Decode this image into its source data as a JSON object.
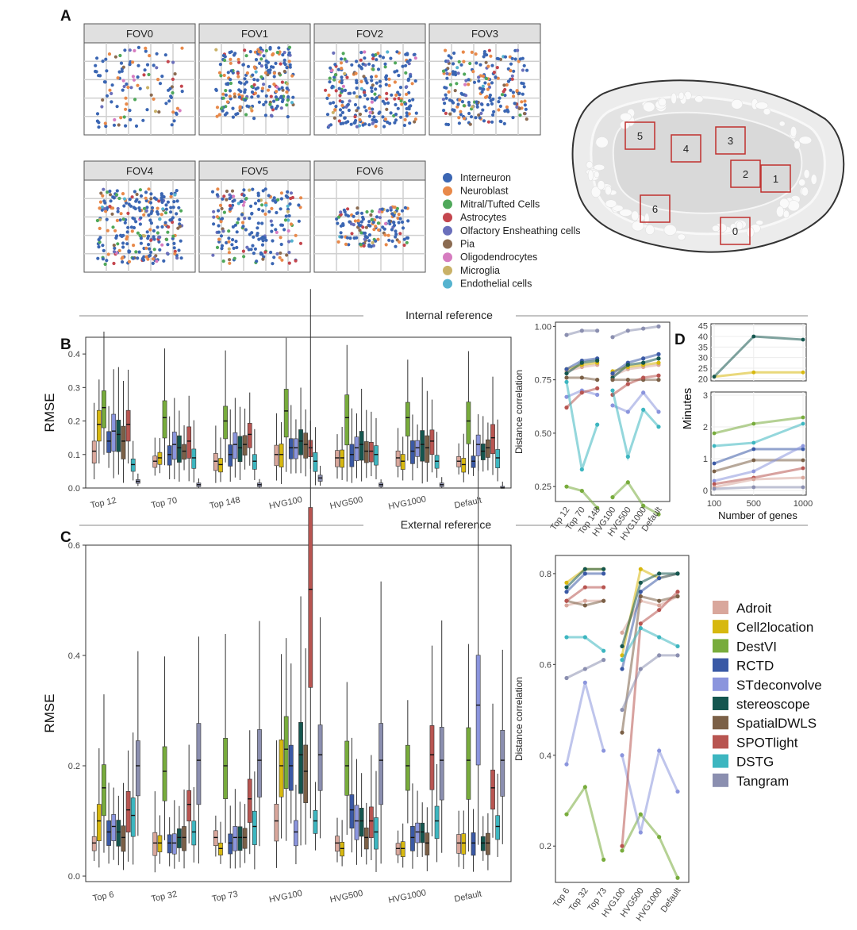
{
  "panel_labels": {
    "a": "A",
    "b": "B",
    "c": "C",
    "d": "D"
  },
  "section_labels": {
    "internal": "Internal reference",
    "external": "External reference"
  },
  "colors": {
    "Adroit": "#d9a79c",
    "Cell2location": "#d7b80f",
    "DestVI": "#78ac3c",
    "RCTD": "#3a59a5",
    "STdeconvolve": "#8b95dd",
    "stereoscope": "#14564f",
    "SpatialDWLS": "#7b6047",
    "SPOTlight": "#b85551",
    "DSTG": "#3db6c0",
    "Tangram": "#8b8fb0"
  },
  "cell_type_colors": [
    "#3b66b3",
    "#e8894a",
    "#4fa85a",
    "#c4464e",
    "#6a6fbb",
    "#8b6b51",
    "#d67cc0",
    "#c9b167",
    "#55b3cf"
  ],
  "fov": {
    "labels": [
      "FOV0",
      "FOV1",
      "FOV2",
      "FOV3",
      "FOV4",
      "FOV5",
      "FOV6"
    ],
    "legend": [
      "Interneuron",
      "Neuroblast",
      "Mitral/Tufted Cells",
      "Astrocytes",
      "Olfactory Ensheathing cells",
      "Pia",
      "Oligodendrocytes",
      "Microglia",
      "Endothelial cells"
    ]
  },
  "map": {
    "boxes": [
      "5",
      "4",
      "3",
      "2",
      "1",
      "6",
      "0"
    ]
  },
  "methods_legend": [
    "Adroit",
    "Cell2location",
    "DestVI",
    "RCTD",
    "STdeconvolve",
    "stereoscope",
    "SpatialDWLS",
    "SPOTlight",
    "DSTG",
    "Tangram"
  ],
  "chart_data": [
    {
      "id": "B-box",
      "type": "box",
      "ylabel": "RMSE",
      "ylim": [
        0,
        0.45
      ],
      "yticks": [
        "0.0",
        "0.1",
        "0.2",
        "0.3",
        "0.4"
      ],
      "categories": [
        "Top 12",
        "Top 70",
        "Top 148",
        "HVG100",
        "HVG500",
        "HVG1000",
        "Default"
      ],
      "series_names": [
        "Adroit",
        "Cell2location",
        "DestVI",
        "RCTD",
        "STdeconvolve",
        "stereoscope",
        "SpatialDWLS",
        "SPOTlight",
        "DSTG",
        "Tangram"
      ],
      "medians": [
        [
          0.11,
          0.19,
          0.24,
          0.14,
          0.17,
          0.16,
          0.14,
          0.19,
          0.07,
          0.02
        ],
        [
          0.08,
          0.09,
          0.21,
          0.1,
          0.13,
          0.12,
          0.11,
          0.14,
          0.09,
          0.01
        ],
        [
          0.08,
          0.07,
          0.2,
          0.1,
          0.13,
          0.12,
          0.13,
          0.16,
          0.08,
          0.01
        ],
        [
          0.1,
          0.1,
          0.23,
          0.12,
          0.12,
          0.14,
          0.13,
          0.12,
          0.08,
          0.03
        ],
        [
          0.09,
          0.09,
          0.21,
          0.1,
          0.12,
          0.13,
          0.11,
          0.11,
          0.1,
          0.01
        ],
        [
          0.09,
          0.08,
          0.21,
          0.11,
          0.12,
          0.13,
          0.12,
          0.14,
          0.08,
          0.01
        ],
        [
          0.08,
          0.07,
          0.2,
          0.08,
          0.13,
          0.11,
          0.12,
          0.15,
          0.09,
          0.0
        ]
      ]
    },
    {
      "id": "B-line",
      "type": "line",
      "ylabel": "Distance correlation",
      "ylim": [
        0.18,
        1.02
      ],
      "yticks": [
        "0.25",
        "0.50",
        "0.75",
        "1.00"
      ],
      "categories": [
        "Top 12",
        "Top 70",
        "Top 148",
        "HVG100",
        "HVG500",
        "HVG1000",
        "Default"
      ],
      "series": [
        {
          "name": "Adroit",
          "values": [
            0.79,
            0.81,
            0.82,
            0.77,
            0.8,
            0.81,
            0.82
          ]
        },
        {
          "name": "Cell2location",
          "values": [
            0.8,
            0.82,
            0.83,
            0.79,
            0.81,
            0.82,
            0.83
          ]
        },
        {
          "name": "DestVI",
          "values": [
            0.25,
            0.23,
            0.15,
            0.2,
            0.27,
            0.16,
            0.12
          ]
        },
        {
          "name": "RCTD",
          "values": [
            0.8,
            0.84,
            0.85,
            0.78,
            0.83,
            0.85,
            0.87
          ]
        },
        {
          "name": "STdeconvolve",
          "values": [
            0.67,
            0.7,
            0.68,
            0.63,
            0.6,
            0.69,
            0.6
          ]
        },
        {
          "name": "stereoscope",
          "values": [
            0.78,
            0.83,
            0.84,
            0.76,
            0.82,
            0.83,
            0.85
          ]
        },
        {
          "name": "SpatialDWLS",
          "values": [
            0.76,
            0.76,
            0.75,
            0.75,
            0.75,
            0.75,
            0.75
          ]
        },
        {
          "name": "SPOTlight",
          "values": [
            0.62,
            0.69,
            0.71,
            0.68,
            0.73,
            0.76,
            0.77
          ]
        },
        {
          "name": "DSTG",
          "values": [
            0.74,
            0.33,
            0.54,
            0.7,
            0.39,
            0.61,
            0.53
          ]
        },
        {
          "name": "Tangram",
          "values": [
            0.96,
            0.98,
            0.98,
            0.95,
            0.98,
            0.99,
            1.0
          ]
        }
      ]
    },
    {
      "id": "D",
      "type": "line",
      "ylabel": "Minutes",
      "xlabel": "Number of genes",
      "x": [
        100,
        500,
        1000
      ],
      "upper_yticks": [
        "20",
        "25",
        "30",
        "35",
        "40",
        "45"
      ],
      "lower_yticks": [
        "0",
        "1",
        "2",
        "3"
      ],
      "series": [
        {
          "name": "Cell2location",
          "values": [
            21,
            23,
            23
          ]
        },
        {
          "name": "stereoscope",
          "values": [
            21,
            40,
            38.5
          ]
        },
        {
          "name": "DestVI",
          "values": [
            1.8,
            2.1,
            2.3
          ]
        },
        {
          "name": "DSTG",
          "values": [
            1.4,
            1.5,
            2.1
          ]
        },
        {
          "name": "RCTD",
          "values": [
            0.85,
            1.3,
            1.3
          ]
        },
        {
          "name": "SpatialDWLS",
          "values": [
            0.6,
            0.95,
            0.95
          ]
        },
        {
          "name": "STdeconvolve",
          "values": [
            0.3,
            0.6,
            1.4
          ]
        },
        {
          "name": "SPOTlight",
          "values": [
            0.2,
            0.4,
            0.7
          ]
        },
        {
          "name": "Adroit",
          "values": [
            0.1,
            0.35,
            0.4
          ]
        },
        {
          "name": "Tangram",
          "values": [
            0.05,
            0.1,
            0.1
          ]
        }
      ]
    },
    {
      "id": "C-box",
      "type": "box",
      "ylabel": "RMSE",
      "ylim": [
        -0.01,
        0.6
      ],
      "yticks": [
        "0.0",
        "0.2",
        "0.4",
        "0.6"
      ],
      "categories": [
        "Top 6",
        "Top 32",
        "Top 73",
        "HVG100",
        "HVG500",
        "HVG1000",
        "Default"
      ],
      "series_names": [
        "Adroit",
        "Cell2location",
        "DestVI",
        "RCTD",
        "STdeconvolve",
        "stereoscope",
        "SpatialDWLS",
        "SPOTlight",
        "DSTG",
        "Tangram"
      ],
      "medians": [
        [
          0.06,
          0.1,
          0.16,
          0.08,
          0.09,
          0.08,
          0.07,
          0.12,
          0.11,
          0.2
        ],
        [
          0.06,
          0.06,
          0.19,
          0.06,
          0.06,
          0.07,
          0.07,
          0.13,
          0.08,
          0.21
        ],
        [
          0.07,
          0.05,
          0.2,
          0.06,
          0.07,
          0.07,
          0.07,
          0.14,
          0.09,
          0.21
        ],
        [
          0.1,
          0.2,
          0.23,
          0.2,
          0.08,
          0.22,
          0.19,
          0.52,
          0.1,
          0.22
        ],
        [
          0.06,
          0.05,
          0.2,
          0.12,
          0.1,
          0.1,
          0.07,
          0.1,
          0.08,
          0.21
        ],
        [
          0.05,
          0.05,
          0.2,
          0.07,
          0.08,
          0.08,
          0.06,
          0.22,
          0.1,
          0.21
        ],
        [
          0.06,
          0.06,
          0.21,
          0.06,
          0.31,
          0.06,
          0.06,
          0.16,
          0.09,
          0.21
        ]
      ]
    },
    {
      "id": "C-line",
      "type": "line",
      "ylabel": "Distance correlation",
      "ylim": [
        0.12,
        0.84
      ],
      "yticks": [
        "0.2",
        "0.4",
        "0.6",
        "0.8"
      ],
      "categories": [
        "Top 6",
        "Top 32",
        "Top 73",
        "HVG100",
        "HVG500",
        "HVG1000",
        "Default"
      ],
      "series": [
        {
          "name": "Adroit",
          "values": [
            0.73,
            0.74,
            0.74,
            0.67,
            0.74,
            0.73,
            0.75
          ]
        },
        {
          "name": "Cell2location",
          "values": [
            0.78,
            0.81,
            0.81,
            0.62,
            0.81,
            0.79,
            0.8
          ]
        },
        {
          "name": "DestVI",
          "values": [
            0.27,
            0.33,
            0.17,
            0.19,
            0.27,
            0.22,
            0.13
          ]
        },
        {
          "name": "RCTD",
          "values": [
            0.76,
            0.8,
            0.8,
            0.59,
            0.76,
            0.79,
            0.8
          ]
        },
        {
          "name": "STdeconvolve",
          "values": [
            0.38,
            0.56,
            0.41,
            0.4,
            0.23,
            0.41,
            0.32
          ]
        },
        {
          "name": "stereoscope",
          "values": [
            0.77,
            0.81,
            0.81,
            0.64,
            0.78,
            0.8,
            0.8
          ]
        },
        {
          "name": "SpatialDWLS",
          "values": [
            0.74,
            0.73,
            0.74,
            0.45,
            0.75,
            0.74,
            0.75
          ]
        },
        {
          "name": "SPOTlight",
          "values": [
            0.74,
            0.77,
            0.77,
            0.2,
            0.69,
            0.72,
            0.76
          ]
        },
        {
          "name": "DSTG",
          "values": [
            0.66,
            0.66,
            0.63,
            0.61,
            0.68,
            0.66,
            0.64
          ]
        },
        {
          "name": "Tangram",
          "values": [
            0.57,
            0.59,
            0.61,
            0.5,
            0.59,
            0.62,
            0.62
          ]
        }
      ]
    }
  ]
}
